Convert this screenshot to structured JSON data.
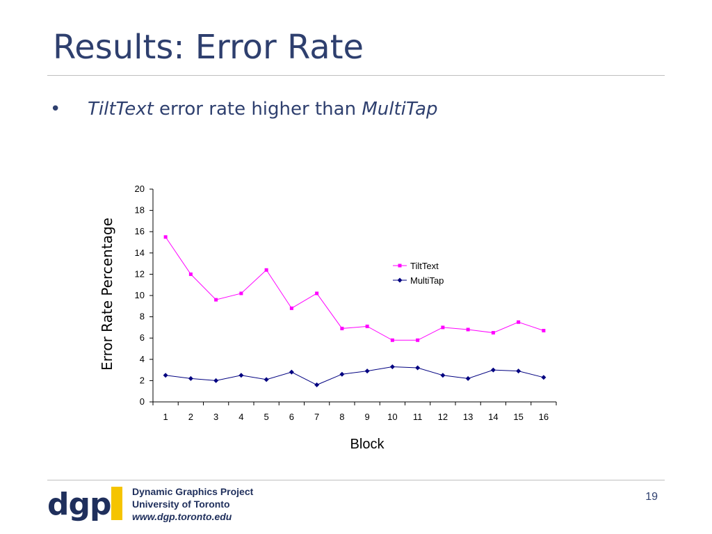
{
  "slide": {
    "title": "Results: Error Rate",
    "bullet": {
      "marker": "•",
      "part1": "TiltText",
      "part2": " error rate higher than ",
      "part3": "MultiTap"
    },
    "page_number": "19"
  },
  "footer": {
    "logo_text": "dgp",
    "line1": "Dynamic Graphics Project",
    "line2": "University of Toronto",
    "line3": "www.dgp.toronto.edu",
    "logo_bar_color": "#f5c400",
    "brand_color": "#1f2f5c"
  },
  "chart_data": {
    "type": "line",
    "title": "",
    "xlabel": "Block",
    "ylabel": "Error Rate Percentage",
    "categories": [
      "1",
      "2",
      "3",
      "4",
      "5",
      "6",
      "7",
      "8",
      "9",
      "10",
      "11",
      "12",
      "13",
      "14",
      "15",
      "16"
    ],
    "ylim": [
      0,
      20
    ],
    "yticks": [
      0,
      2,
      4,
      6,
      8,
      10,
      12,
      14,
      16,
      18,
      20
    ],
    "grid": false,
    "legend_position": "right",
    "series": [
      {
        "name": "TiltText",
        "color": "#ff00ff",
        "marker": "square",
        "values": [
          15.5,
          12.0,
          9.6,
          10.2,
          12.4,
          8.8,
          10.2,
          6.9,
          7.1,
          5.8,
          5.8,
          7.0,
          6.8,
          6.5,
          7.5,
          6.7
        ]
      },
      {
        "name": "MultiTap",
        "color": "#000080",
        "marker": "diamond",
        "values": [
          2.5,
          2.2,
          2.0,
          2.5,
          2.1,
          2.8,
          1.6,
          2.6,
          2.9,
          3.3,
          3.2,
          2.5,
          2.2,
          3.0,
          2.9,
          2.3
        ]
      }
    ]
  }
}
